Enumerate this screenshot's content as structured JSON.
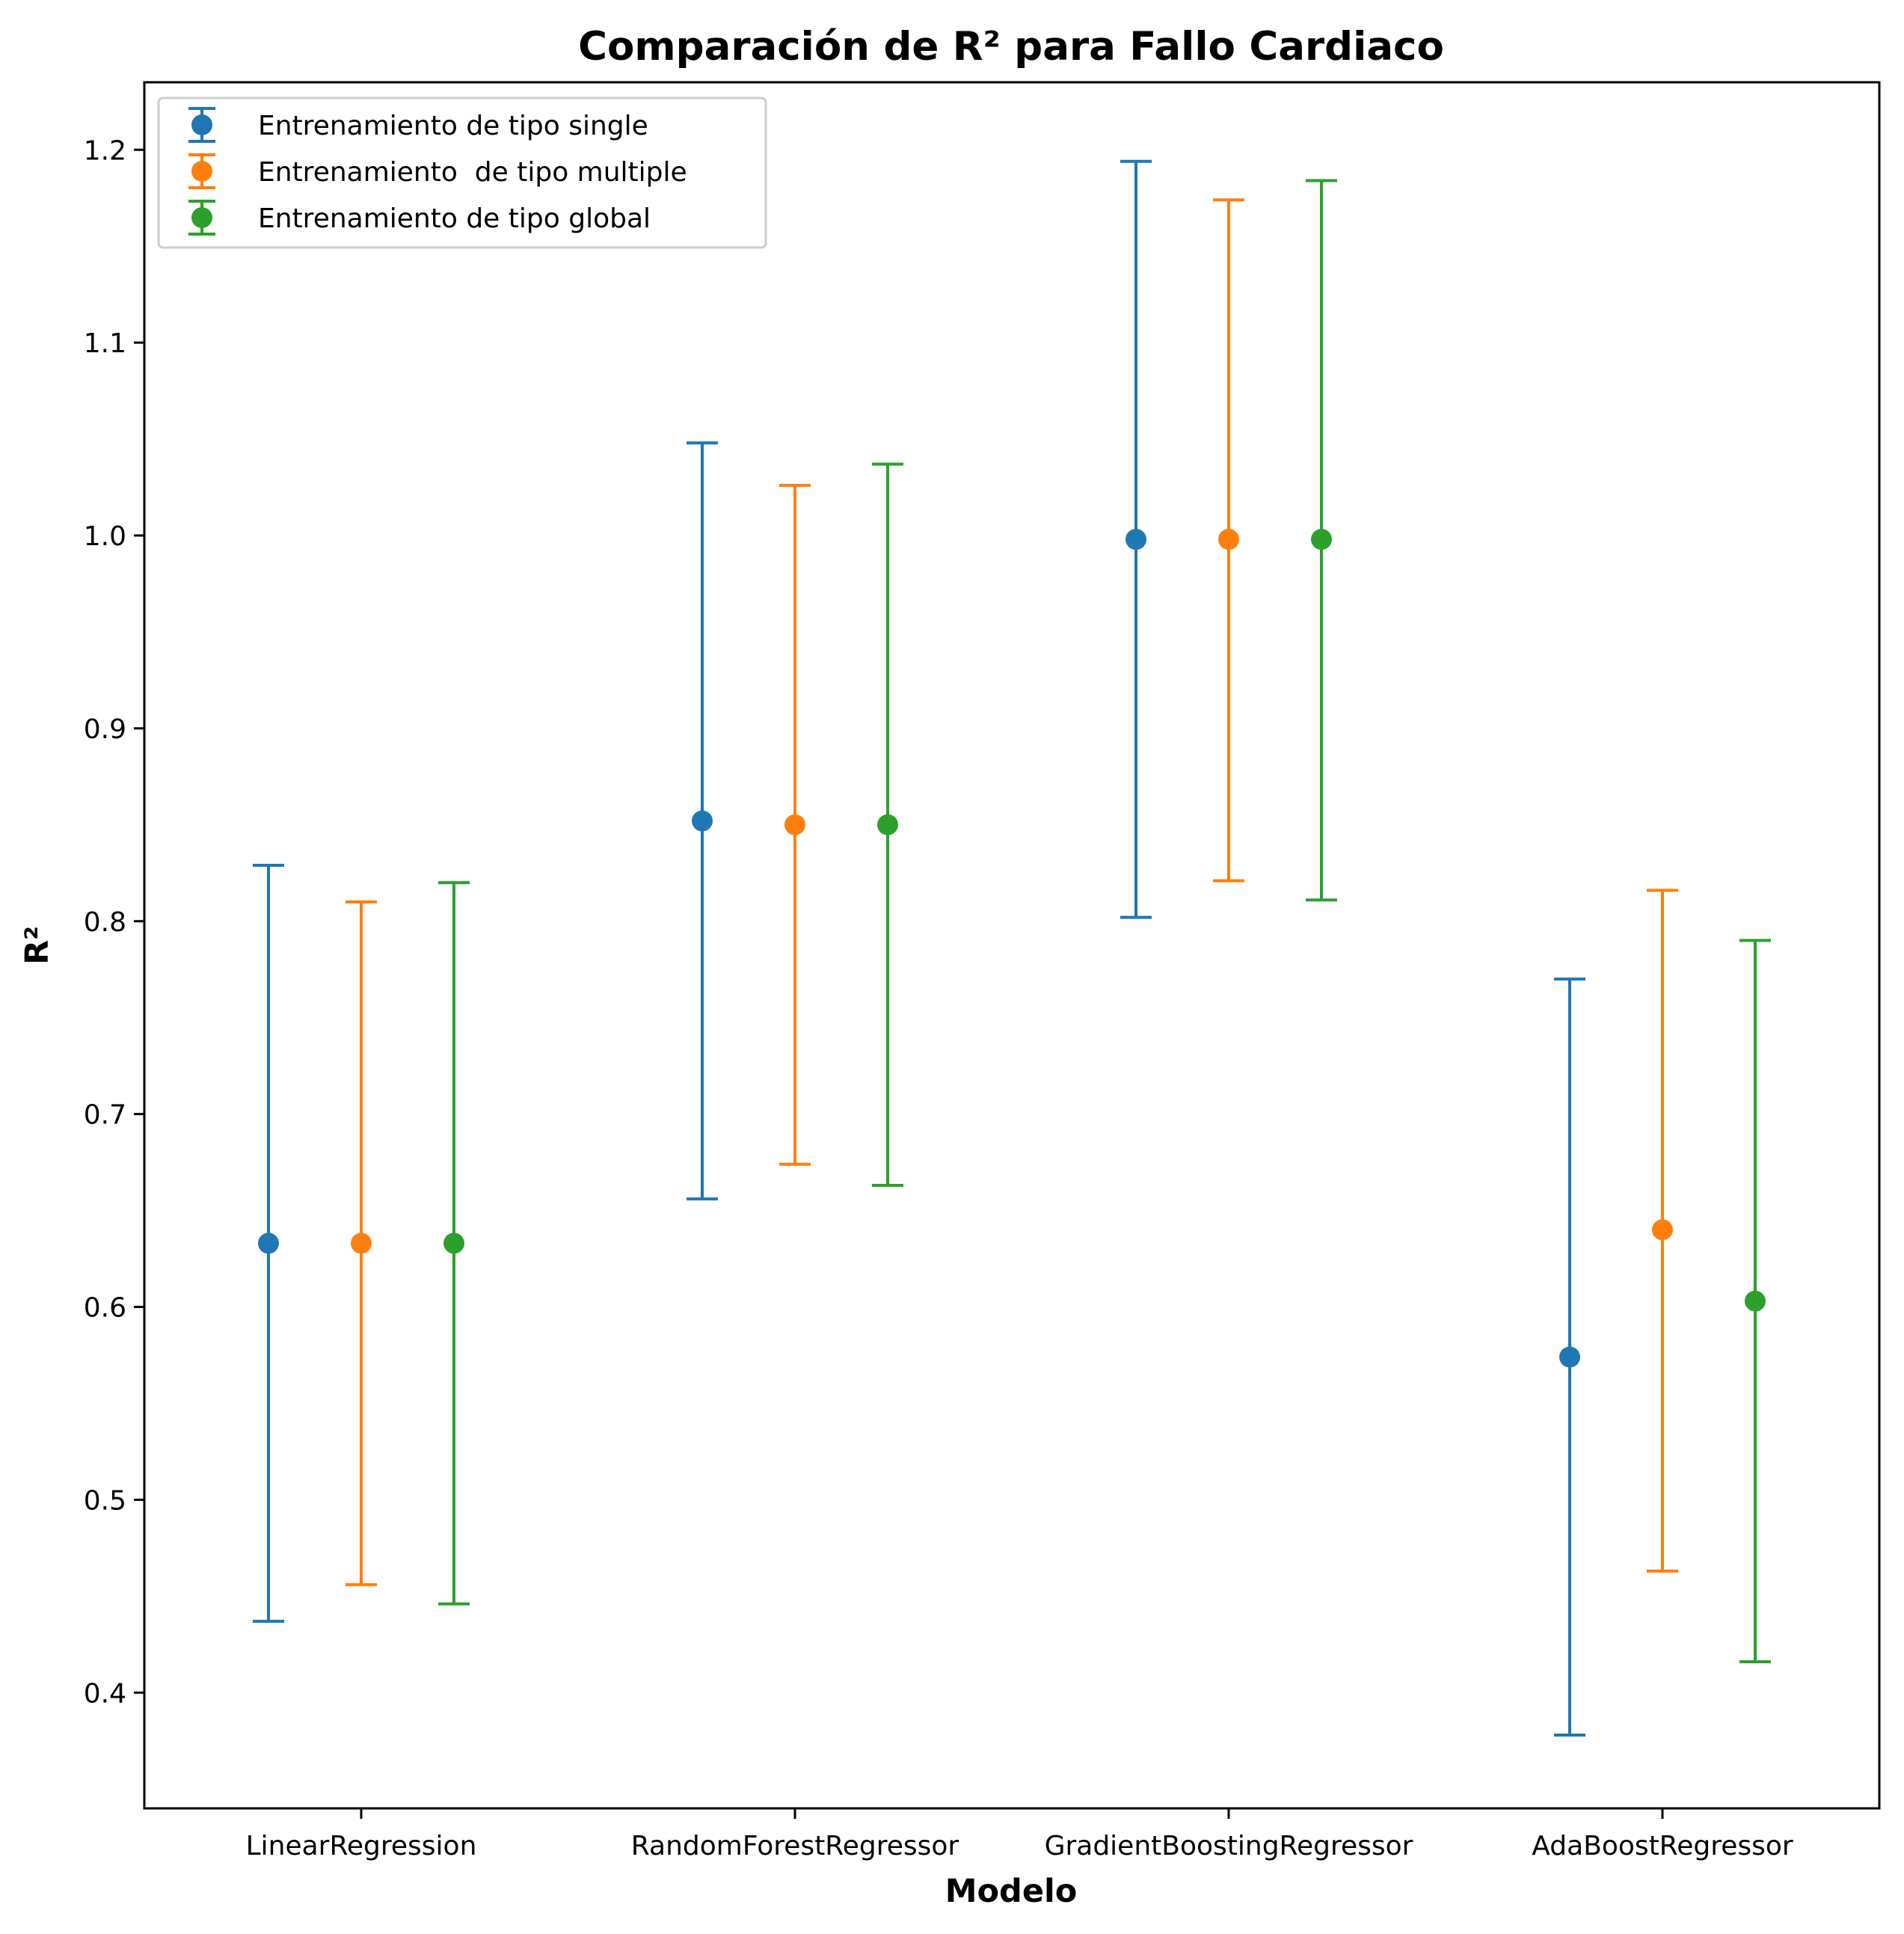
{
  "chart_data": {
    "type": "errorbar",
    "title": "Comparación de R² para Fallo Cardiaco",
    "xlabel": "Modelo",
    "ylabel": "R²",
    "categories": [
      "LinearRegression",
      "RandomForestRegressor",
      "GradientBoostingRegressor",
      "AdaBoostRegressor"
    ],
    "ylim": [
      0.34,
      1.235
    ],
    "yticks": [
      0.4,
      0.5,
      0.6,
      0.7,
      0.8,
      0.9,
      1.0,
      1.1,
      1.2
    ],
    "ytick_labels": [
      "0.4",
      "0.5",
      "0.6",
      "0.7",
      "0.8",
      "0.9",
      "1.0",
      "1.1",
      "1.2"
    ],
    "grid": false,
    "legend_position": "top-left",
    "series": [
      {
        "name": "Entrenamiento de tipo single",
        "color": "#1f77b4",
        "values": [
          0.633,
          0.852,
          0.998,
          0.574
        ],
        "lower": [
          0.437,
          0.656,
          0.802,
          0.378
        ],
        "upper": [
          0.829,
          1.048,
          1.194,
          0.77
        ]
      },
      {
        "name": "Entrenamiento  de tipo multiple",
        "color": "#ff7f0e",
        "values": [
          0.633,
          0.85,
          0.998,
          0.64
        ],
        "lower": [
          0.456,
          0.674,
          0.821,
          0.463
        ],
        "upper": [
          0.81,
          1.026,
          1.174,
          0.816
        ]
      },
      {
        "name": "Entrenamiento de tipo global",
        "color": "#2ca02c",
        "values": [
          0.633,
          0.85,
          0.998,
          0.603
        ],
        "lower": [
          0.446,
          0.663,
          0.811,
          0.416
        ],
        "upper": [
          0.82,
          1.037,
          1.184,
          0.79
        ]
      }
    ]
  }
}
